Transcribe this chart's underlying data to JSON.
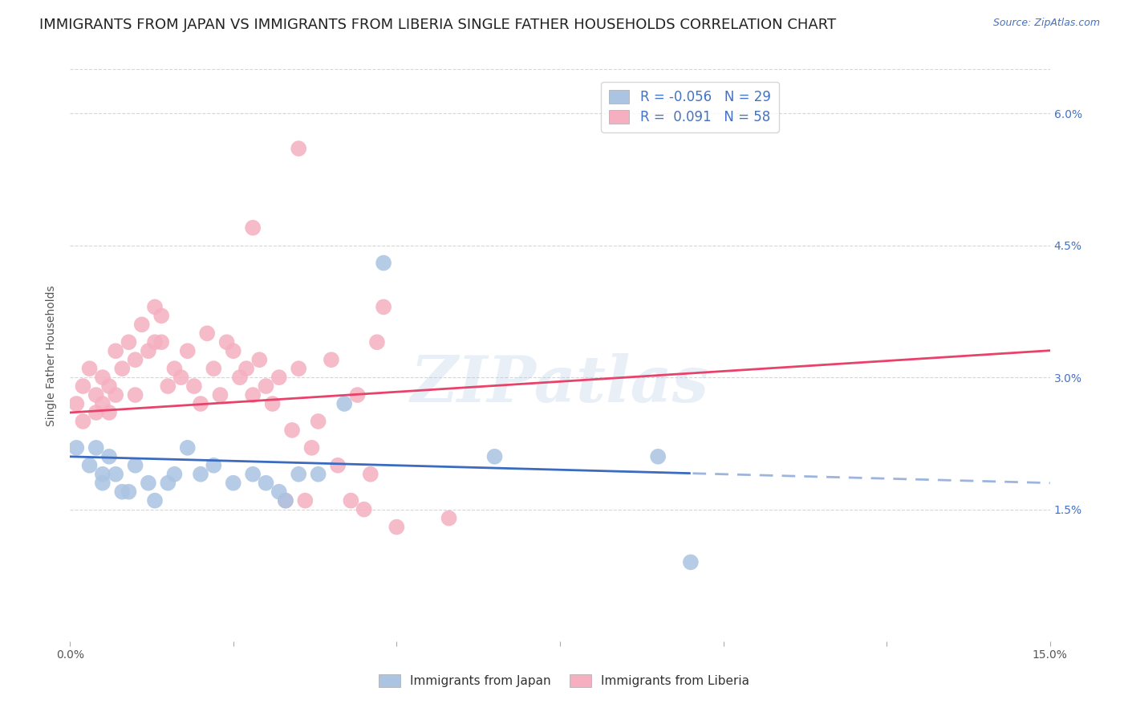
{
  "title": "IMMIGRANTS FROM JAPAN VS IMMIGRANTS FROM LIBERIA SINGLE FATHER HOUSEHOLDS CORRELATION CHART",
  "source": "Source: ZipAtlas.com",
  "ylabel": "Single Father Households",
  "ytick_labels": [
    "1.5%",
    "3.0%",
    "4.5%",
    "6.0%"
  ],
  "ytick_values": [
    0.015,
    0.03,
    0.045,
    0.06
  ],
  "xlim": [
    0.0,
    0.15
  ],
  "ylim": [
    0.0,
    0.065
  ],
  "japan_color": "#aac4e2",
  "liberia_color": "#f5afc0",
  "japan_line_color": "#3b6bbf",
  "liberia_line_color": "#e8426a",
  "watermark": "ZIPatlas",
  "japan_R": -0.056,
  "japan_N": 29,
  "liberia_R": 0.091,
  "liberia_N": 58,
  "background_color": "#ffffff",
  "grid_color": "#cccccc",
  "title_fontsize": 13,
  "axis_label_fontsize": 10,
  "tick_fontsize": 10,
  "japan_points": [
    [
      0.001,
      0.022
    ],
    [
      0.003,
      0.02
    ],
    [
      0.004,
      0.022
    ],
    [
      0.005,
      0.019
    ],
    [
      0.005,
      0.018
    ],
    [
      0.006,
      0.021
    ],
    [
      0.007,
      0.019
    ],
    [
      0.008,
      0.017
    ],
    [
      0.009,
      0.017
    ],
    [
      0.01,
      0.02
    ],
    [
      0.012,
      0.018
    ],
    [
      0.013,
      0.016
    ],
    [
      0.015,
      0.018
    ],
    [
      0.016,
      0.019
    ],
    [
      0.018,
      0.022
    ],
    [
      0.02,
      0.019
    ],
    [
      0.022,
      0.02
    ],
    [
      0.025,
      0.018
    ],
    [
      0.028,
      0.019
    ],
    [
      0.03,
      0.018
    ],
    [
      0.032,
      0.017
    ],
    [
      0.033,
      0.016
    ],
    [
      0.035,
      0.019
    ],
    [
      0.038,
      0.019
    ],
    [
      0.042,
      0.027
    ],
    [
      0.048,
      0.043
    ],
    [
      0.065,
      0.021
    ],
    [
      0.09,
      0.021
    ],
    [
      0.095,
      0.009
    ]
  ],
  "liberia_points": [
    [
      0.001,
      0.027
    ],
    [
      0.002,
      0.029
    ],
    [
      0.002,
      0.025
    ],
    [
      0.003,
      0.031
    ],
    [
      0.004,
      0.028
    ],
    [
      0.004,
      0.026
    ],
    [
      0.005,
      0.03
    ],
    [
      0.005,
      0.027
    ],
    [
      0.006,
      0.029
    ],
    [
      0.006,
      0.026
    ],
    [
      0.007,
      0.028
    ],
    [
      0.007,
      0.033
    ],
    [
      0.008,
      0.031
    ],
    [
      0.009,
      0.034
    ],
    [
      0.01,
      0.032
    ],
    [
      0.01,
      0.028
    ],
    [
      0.011,
      0.036
    ],
    [
      0.012,
      0.033
    ],
    [
      0.013,
      0.038
    ],
    [
      0.013,
      0.034
    ],
    [
      0.014,
      0.037
    ],
    [
      0.014,
      0.034
    ],
    [
      0.015,
      0.029
    ],
    [
      0.016,
      0.031
    ],
    [
      0.017,
      0.03
    ],
    [
      0.018,
      0.033
    ],
    [
      0.019,
      0.029
    ],
    [
      0.02,
      0.027
    ],
    [
      0.021,
      0.035
    ],
    [
      0.022,
      0.031
    ],
    [
      0.023,
      0.028
    ],
    [
      0.024,
      0.034
    ],
    [
      0.025,
      0.033
    ],
    [
      0.026,
      0.03
    ],
    [
      0.027,
      0.031
    ],
    [
      0.028,
      0.028
    ],
    [
      0.029,
      0.032
    ],
    [
      0.03,
      0.029
    ],
    [
      0.031,
      0.027
    ],
    [
      0.032,
      0.03
    ],
    [
      0.033,
      0.016
    ],
    [
      0.034,
      0.024
    ],
    [
      0.035,
      0.031
    ],
    [
      0.036,
      0.016
    ],
    [
      0.037,
      0.022
    ],
    [
      0.038,
      0.025
    ],
    [
      0.04,
      0.032
    ],
    [
      0.041,
      0.02
    ],
    [
      0.043,
      0.016
    ],
    [
      0.044,
      0.028
    ],
    [
      0.045,
      0.015
    ],
    [
      0.046,
      0.019
    ],
    [
      0.047,
      0.034
    ],
    [
      0.048,
      0.038
    ],
    [
      0.05,
      0.013
    ],
    [
      0.058,
      0.014
    ],
    [
      0.035,
      0.056
    ],
    [
      0.028,
      0.047
    ]
  ]
}
